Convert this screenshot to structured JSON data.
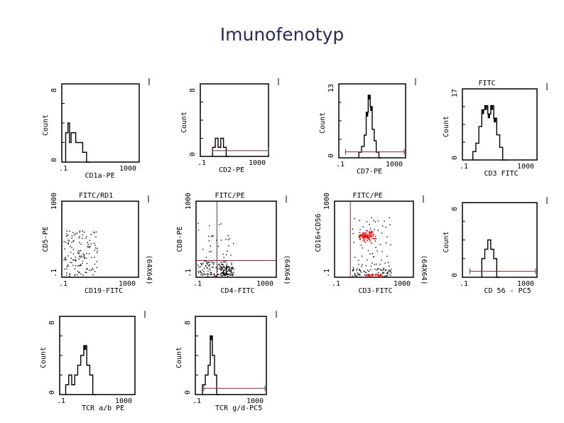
{
  "page": {
    "title": "Imunofenotyp"
  },
  "colors": {
    "axis": "#000000",
    "gate": "#7a2a40",
    "dense": "#ff0000",
    "dots": "#000000"
  },
  "chart_data": [
    {
      "type": "histogram",
      "id": "cd1a",
      "top_label": "",
      "xlabel": "CD1a-PE",
      "ylabel": "Count",
      "x_min_label": ".1",
      "x_max_label": "1000",
      "y_min_label": "0",
      "y_max_label": "8",
      "ymax": 8,
      "x": [
        0.05,
        0.08,
        0.1,
        0.12,
        0.15,
        0.18,
        0.22,
        0.27,
        0.32
      ],
      "counts": [
        3,
        4,
        2,
        3,
        3,
        2,
        2,
        1,
        0
      ],
      "gate": null
    },
    {
      "type": "histogram",
      "id": "cd2",
      "top_label": "",
      "xlabel": "CD2-PE",
      "ylabel": "Count",
      "x_min_label": ".1",
      "x_max_label": "1000",
      "y_min_label": "0",
      "y_max_label": "8",
      "ymax": 8,
      "x": [
        0.18,
        0.22,
        0.26,
        0.3,
        0.34,
        0.38
      ],
      "counts": [
        1,
        2,
        1,
        2,
        1,
        0
      ],
      "gate": [
        0.18,
        1.0
      ]
    },
    {
      "type": "histogram",
      "id": "cd7",
      "top_label": "",
      "xlabel": "CD7-PE",
      "ylabel": "Count",
      "x_min_label": ".1",
      "x_max_label": "1000",
      "y_min_label": "0",
      "y_max_label": "13",
      "ymax": 13,
      "x": [
        0.3,
        0.34,
        0.38,
        0.41,
        0.44,
        0.47,
        0.5,
        0.53,
        0.56,
        0.6
      ],
      "counts": [
        1,
        2,
        4,
        8,
        11,
        9,
        5,
        3,
        1,
        0
      ],
      "gate": [
        0.1,
        0.98
      ]
    },
    {
      "type": "histogram",
      "id": "cd3",
      "top_label": "FITC",
      "xlabel": "CD3 FITC",
      "ylabel": "Count",
      "x_min_label": ".1",
      "x_max_label": "1000",
      "y_min_label": "0",
      "y_max_label": "17",
      "ymax": 17,
      "x": [
        0.14,
        0.18,
        0.22,
        0.26,
        0.3,
        0.34,
        0.38,
        0.42,
        0.46,
        0.5,
        0.54
      ],
      "counts": [
        2,
        4,
        8,
        12,
        13,
        11,
        13,
        10,
        6,
        3,
        0
      ],
      "gate": null
    },
    {
      "type": "scatter",
      "id": "cd19-cd5",
      "top_label": "FITC/RD1",
      "xlabel": "CD19-FITC",
      "ylabel": "CD5-PE",
      "side_label": "(64X64)",
      "x_min_label": ".1",
      "x_max_label": "1000",
      "y_min_label": ".1",
      "y_max_label": "1000",
      "quadrant": null,
      "cluster": null
    },
    {
      "type": "scatter",
      "id": "cd4-cd8",
      "top_label": "FITC/PE",
      "xlabel": "CD4-FITC",
      "ylabel": "CD8-PE",
      "side_label": "(64X64)",
      "x_min_label": ".1",
      "x_max_label": "1000",
      "y_min_label": ".1",
      "y_max_label": "1000",
      "quadrant": [
        0.26,
        0.22
      ],
      "cluster": null
    },
    {
      "type": "scatter",
      "id": "cd3-cd16",
      "top_label": "FITC/PE",
      "xlabel": "CD3-FITC",
      "ylabel": "CD16+CD56",
      "side_label": "(64X64)",
      "x_min_label": ".1",
      "x_max_label": "1000",
      "y_min_label": ".1",
      "y_max_label": "1000",
      "quadrant": [
        0.2,
        null
      ],
      "cluster": [
        0.4,
        0.55
      ]
    },
    {
      "type": "histogram",
      "id": "cd56",
      "top_label": "",
      "xlabel": "CD 56 - PC5",
      "ylabel": "Count",
      "x_min_label": ".1",
      "x_max_label": "1000",
      "y_min_label": "0",
      "y_max_label": "8",
      "ymax": 8,
      "x": [
        0.26,
        0.3,
        0.34,
        0.38,
        0.42,
        0.46
      ],
      "counts": [
        2,
        3,
        4,
        3,
        2,
        0
      ],
      "gate": [
        0.1,
        0.98
      ]
    },
    {
      "type": "histogram",
      "id": "tcrab",
      "top_label": "",
      "xlabel": "TCR a/b  PE",
      "ylabel": "Count",
      "x_min_label": ".1",
      "x_max_label": "1000",
      "y_min_label": "0",
      "y_max_label": "8",
      "ymax": 8,
      "x": [
        0.08,
        0.12,
        0.16,
        0.2,
        0.24,
        0.28,
        0.32,
        0.36,
        0.4,
        0.44
      ],
      "counts": [
        1,
        2,
        1,
        2,
        3,
        4,
        5,
        3,
        2,
        0
      ],
      "gate": null
    },
    {
      "type": "histogram",
      "id": "tcrgd",
      "top_label": "",
      "xlabel": "TCR g/d-PC5",
      "ylabel": "Count",
      "x_min_label": ".1",
      "x_max_label": "1000",
      "y_min_label": "0",
      "y_max_label": "8",
      "ymax": 8,
      "x": [
        0.1,
        0.14,
        0.18,
        0.21,
        0.24,
        0.27,
        0.3
      ],
      "counts": [
        1,
        2,
        3,
        6,
        4,
        2,
        0
      ],
      "gate": [
        0.12,
        0.98
      ]
    }
  ]
}
